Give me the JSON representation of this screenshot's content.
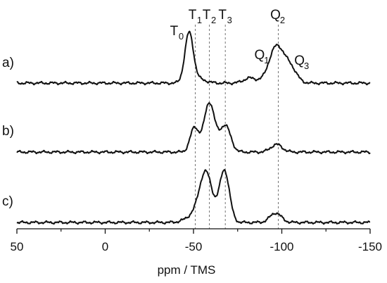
{
  "chart_data": {
    "type": "line",
    "title": "",
    "xlabel": "ppm / TMS",
    "ylabel": "",
    "xlim": [
      50,
      -150
    ],
    "x_reversed": true,
    "grid": false,
    "legend": "none",
    "x_ticks": [
      50,
      0,
      -50,
      -100,
      -150
    ],
    "x_tick_labels": [
      "50",
      "0",
      "-50",
      "-100",
      "-150"
    ],
    "reference_lines": [
      {
        "main": "T",
        "sub": "1",
        "x": -51
      },
      {
        "main": "T",
        "sub": "2",
        "x": -59
      },
      {
        "main": "T",
        "sub": "3",
        "x": -68
      },
      {
        "main": "Q",
        "sub": "2",
        "x": -98
      }
    ],
    "peak_annotations": [
      {
        "main": "T",
        "sub": "0",
        "x": -47,
        "panel": "a)"
      },
      {
        "main": "Q",
        "sub": "1",
        "x": -85,
        "panel": "a)"
      },
      {
        "main": "Q",
        "sub": "3",
        "x": -110,
        "panel": "a)"
      }
    ],
    "series": [
      {
        "label": "a)",
        "peaks": [
          {
            "center": -47.5,
            "height": 0.78,
            "width": 2.4
          },
          {
            "center": -53,
            "height": 0.06,
            "width": 4
          },
          {
            "center": -82,
            "height": 0.08,
            "width": 3.5
          },
          {
            "center": -97,
            "height": 0.58,
            "width": 4.2
          },
          {
            "center": -105,
            "height": 0.22,
            "width": 3.5
          }
        ]
      },
      {
        "label": "b)",
        "peaks": [
          {
            "center": -50.5,
            "height": 0.38,
            "width": 2.4
          },
          {
            "center": -59,
            "height": 0.78,
            "width": 3.0
          },
          {
            "center": -68,
            "height": 0.42,
            "width": 3.0
          },
          {
            "center": -97,
            "height": 0.12,
            "width": 3.2
          }
        ]
      },
      {
        "label": "c)",
        "peaks": [
          {
            "center": -57,
            "height": 0.78,
            "width": 3.6
          },
          {
            "center": -67.5,
            "height": 0.82,
            "width": 2.8
          },
          {
            "center": -50,
            "height": 0.1,
            "width": 4.5
          },
          {
            "center": -96.5,
            "height": 0.15,
            "width": 3.2
          }
        ]
      }
    ]
  }
}
